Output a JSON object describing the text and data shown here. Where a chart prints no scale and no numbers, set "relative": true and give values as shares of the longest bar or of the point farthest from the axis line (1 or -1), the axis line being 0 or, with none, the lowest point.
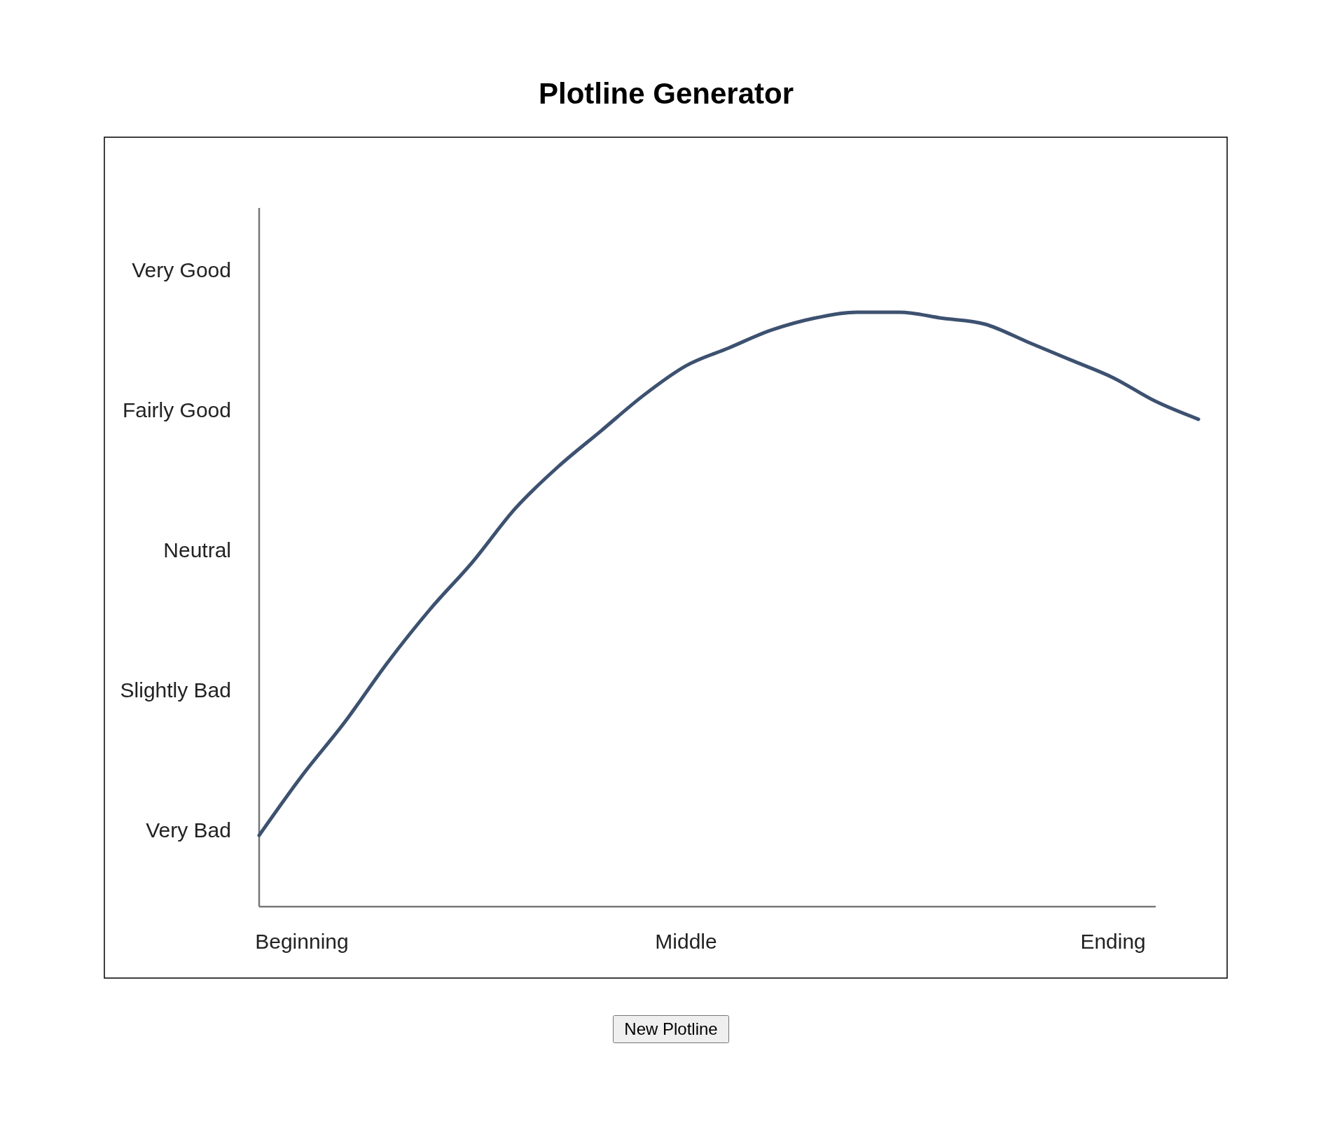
{
  "chart_data": {
    "type": "line",
    "title": "Plotline Generator",
    "relative": true,
    "categories": [
      null,
      "Beginning",
      null,
      null,
      null,
      null,
      null,
      null,
      null,
      null,
      "Middle",
      null,
      null,
      null,
      null,
      null,
      null,
      null,
      null,
      null,
      "Ending",
      null,
      null
    ],
    "values": [
      0.12,
      0.22,
      0.31,
      0.41,
      0.5,
      0.58,
      0.67,
      0.74,
      0.8,
      0.86,
      0.91,
      0.94,
      0.97,
      0.99,
      1.0,
      1.0,
      0.99,
      0.98,
      0.95,
      0.92,
      0.89,
      0.85,
      0.82
    ],
    "color": "#3d5170",
    "marker": "none",
    "line_style": "solid",
    "annotations": [
      "Very Good",
      "Fairly Good",
      "Neutral",
      "Slightly Bad",
      "Very Bad",
      "New Plotline"
    ]
  }
}
